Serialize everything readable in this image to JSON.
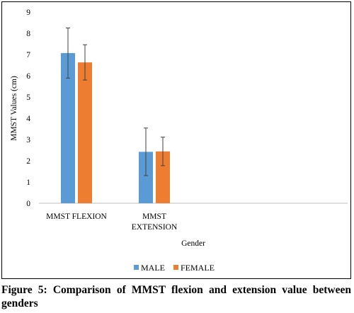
{
  "chart_data": {
    "type": "bar",
    "categories": [
      [
        "MMST FLEXION"
      ],
      [
        "MMST",
        "EXTENSION"
      ]
    ],
    "series": [
      {
        "name": "MALE",
        "color": "#5B9BD5",
        "values": [
          7.07,
          2.42
        ],
        "error": [
          1.18,
          1.12
        ]
      },
      {
        "name": "FEMALE",
        "color": "#ED7D31",
        "values": [
          6.63,
          2.44
        ],
        "error": [
          0.83,
          0.67
        ]
      }
    ],
    "xlabel": "Gender",
    "ylabel": "MMST Values (cm)",
    "ylim": [
      0,
      9
    ],
    "yticks": [
      "0",
      "1",
      "2",
      "3",
      "4",
      "5",
      "6",
      "7",
      "8",
      "9"
    ],
    "grid": false,
    "legend": "bottom",
    "error_bars": true
  },
  "caption": "Figure 5: Comparison of MMST flexion and extension value between genders"
}
